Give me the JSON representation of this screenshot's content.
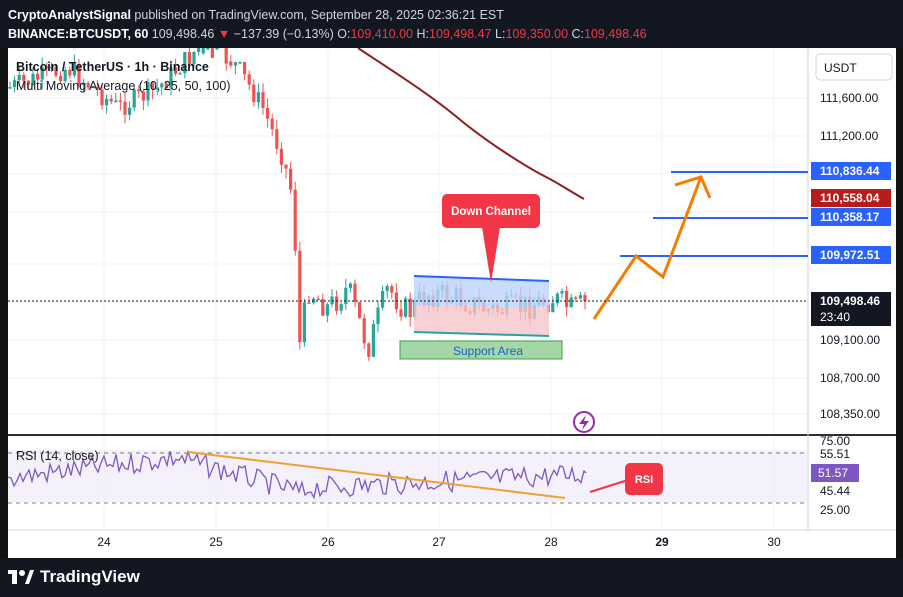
{
  "header": {
    "publisher": "CryptoAnalystSignal",
    "published_text": "published on TradingView.com, September 28, 2025 02:36:21 EST",
    "symbol": "BINANCE:BTCUSDT, 60",
    "last_price": "109,498.46",
    "change_arrow": "▼",
    "change": "−137.39 (−0.13%)",
    "open_label": "O:",
    "open": "109,410.00",
    "high_label": "H:",
    "high": "109,498.47",
    "low_label": "L:",
    "low": "109,350.00",
    "close_label": "C:",
    "close": "109,498.46"
  },
  "legend": {
    "title": "Bitcoin / TetherUS · 1h · Binance",
    "indicator": "Multi Moving Average (10, 25, 50, 100)",
    "rsi": "RSI (14, close)"
  },
  "price_axis": {
    "currency": "USDT",
    "ticks": [
      "111,600.00",
      "111,200.00",
      "109,100.00",
      "108,700.00",
      "108,350.00"
    ],
    "levels": [
      {
        "label": "110,836.44",
        "color": "#2962ff"
      },
      {
        "label": "110,558.04",
        "color": "#b71c1c"
      },
      {
        "label": "110,358.17",
        "color": "#2962ff"
      },
      {
        "label": "109,972.51",
        "color": "#2962ff"
      }
    ],
    "current": {
      "price": "109,498.46",
      "countdown": "23:40"
    }
  },
  "rsi_axis": {
    "ticks": [
      "75.00",
      "55.51",
      "45.44",
      "25.00"
    ],
    "current": "51.57"
  },
  "time_axis": {
    "ticks": [
      "24",
      "25",
      "26",
      "27",
      "28",
      "29",
      "30"
    ]
  },
  "annotations": {
    "down_channel": "Down Channel",
    "support_area": "Support Area",
    "rsi_callout": "RSI"
  },
  "colors": {
    "up": "#26a69a",
    "down": "#ef5350",
    "ma": "#8b1e1e",
    "projection": "#f57c00",
    "callout": "#f23645",
    "level": "#2962ff",
    "rsi": "#7e57c2"
  },
  "footer": {
    "brand": "TradingView"
  }
}
